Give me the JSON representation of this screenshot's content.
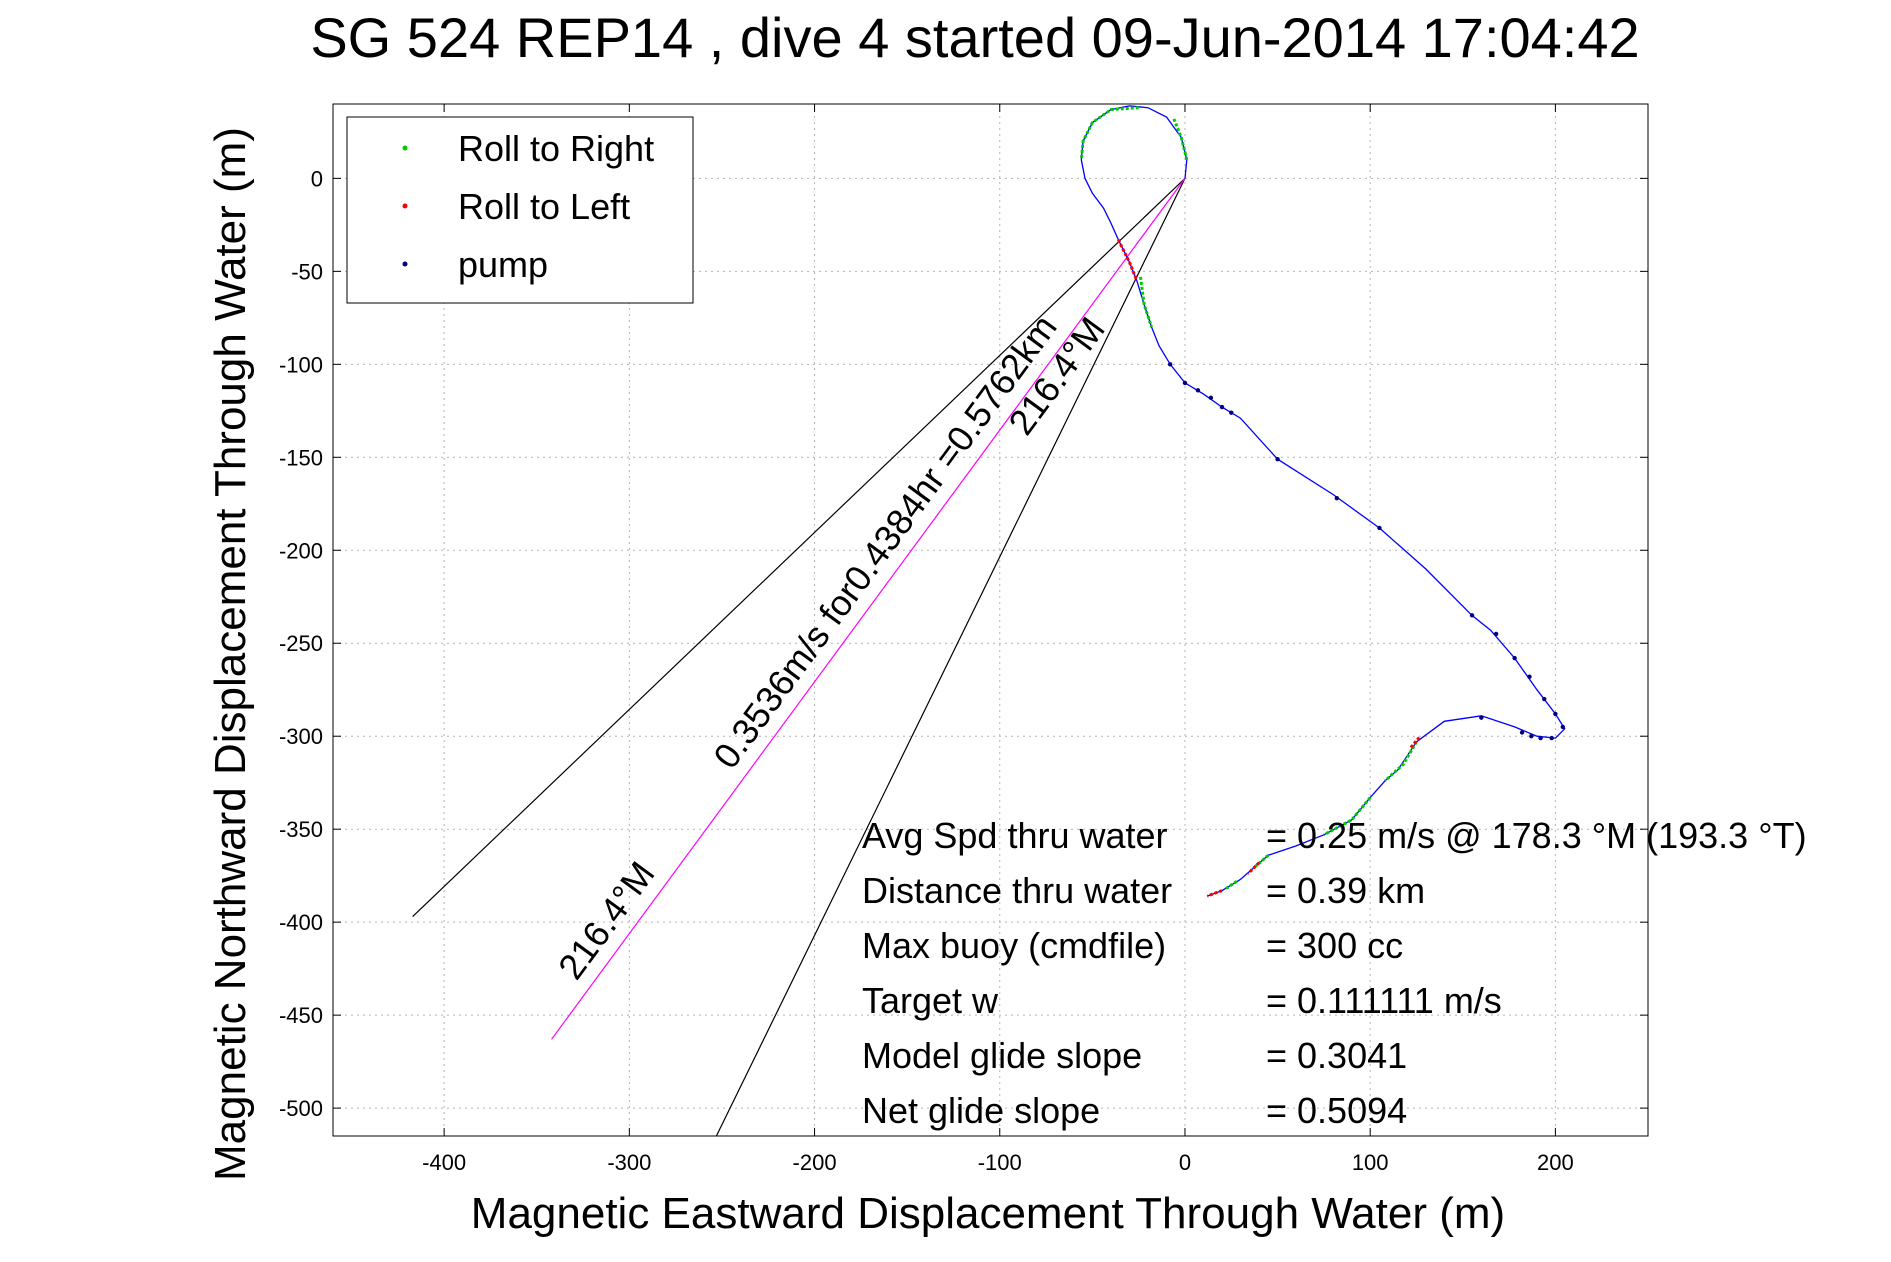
{
  "chart_data": {
    "type": "line",
    "title": "SG 524   REP14  , dive 4 started 09-Jun-2014 17:04:42",
    "xlabel": "Magnetic Eastward Displacement Through Water (m)",
    "ylabel": "Magnetic Northward Displacement Through Water (m)",
    "xlim": [
      -460,
      250
    ],
    "ylim": [
      -515,
      40
    ],
    "xticks": [
      -400,
      -300,
      -200,
      -100,
      0,
      100,
      200
    ],
    "yticks": [
      0,
      -50,
      -100,
      -150,
      -200,
      -250,
      -300,
      -350,
      -400,
      -450,
      -500
    ],
    "grid": true,
    "legend_position": "top-left",
    "colors": {
      "track": "#0000ff",
      "roll_right": "#00cc00",
      "roll_left": "#ff0000",
      "pump": "#000080",
      "heading_line": "#ff00ff",
      "cone": "#000000"
    },
    "legend": [
      {
        "label": "Roll to Right",
        "color": "#00cc00"
      },
      {
        "label": "Roll to Left",
        "color": "#ff0000"
      },
      {
        "label": "pump",
        "color": "#000080"
      }
    ],
    "track": [
      [
        0,
        0
      ],
      [
        1,
        10
      ],
      [
        -2,
        22
      ],
      [
        -10,
        33
      ],
      [
        -20,
        38
      ],
      [
        -30,
        39
      ],
      [
        -40,
        37
      ],
      [
        -50,
        30
      ],
      [
        -55,
        20
      ],
      [
        -56,
        10
      ],
      [
        -54,
        0
      ],
      [
        -50,
        -8
      ],
      [
        -44,
        -16
      ],
      [
        -40,
        -24
      ],
      [
        -36,
        -33
      ],
      [
        -30,
        -45
      ],
      [
        -26,
        -55
      ],
      [
        -22,
        -68
      ],
      [
        -18,
        -80
      ],
      [
        -14,
        -90
      ],
      [
        -8,
        -100
      ],
      [
        0,
        -110
      ],
      [
        10,
        -116
      ],
      [
        20,
        -123
      ],
      [
        30,
        -129
      ],
      [
        50,
        -151
      ],
      [
        80,
        -170
      ],
      [
        105,
        -188
      ],
      [
        130,
        -210
      ],
      [
        155,
        -235
      ],
      [
        165,
        -243
      ],
      [
        178,
        -258
      ],
      [
        190,
        -275
      ],
      [
        200,
        -288
      ],
      [
        205,
        -296
      ],
      [
        200,
        -301
      ],
      [
        190,
        -300
      ],
      [
        178,
        -295
      ],
      [
        160,
        -289
      ],
      [
        140,
        -292
      ],
      [
        125,
        -303
      ],
      [
        115,
        -318
      ],
      [
        108,
        -324
      ],
      [
        100,
        -333
      ],
      [
        90,
        -345
      ],
      [
        75,
        -353
      ],
      [
        60,
        -359
      ],
      [
        45,
        -364
      ],
      [
        38,
        -370
      ],
      [
        30,
        -377
      ],
      [
        20,
        -383
      ],
      [
        12,
        -386
      ]
    ],
    "roll_right_segments": [
      [
        [
          -25,
          38
        ],
        [
          -40,
          37
        ],
        [
          -50,
          30
        ],
        [
          -55,
          20
        ],
        [
          -56,
          10
        ]
      ],
      [
        [
          -6,
          32
        ],
        [
          -2,
          22
        ],
        [
          1,
          10
        ]
      ],
      [
        [
          -24,
          -53
        ],
        [
          -22,
          -68
        ],
        [
          -18,
          -80
        ]
      ],
      [
        [
          125,
          -303
        ],
        [
          118,
          -315
        ],
        [
          108,
          -324
        ]
      ],
      [
        [
          100,
          -333
        ],
        [
          90,
          -345
        ],
        [
          75,
          -353
        ]
      ],
      [
        [
          45,
          -364
        ],
        [
          38,
          -370
        ]
      ],
      [
        [
          28,
          -378
        ],
        [
          22,
          -382
        ]
      ]
    ],
    "roll_left_segments": [
      [
        [
          -36,
          -33
        ],
        [
          -30,
          -45
        ],
        [
          -26,
          -55
        ]
      ],
      [
        [
          122,
          -306
        ],
        [
          127,
          -300
        ]
      ],
      [
        [
          40,
          -368
        ],
        [
          34,
          -374
        ]
      ],
      [
        [
          20,
          -383
        ],
        [
          12,
          -386
        ]
      ]
    ],
    "pump_points": [
      [
        -8,
        -100
      ],
      [
        0,
        -110
      ],
      [
        7,
        -114
      ],
      [
        14,
        -118
      ],
      [
        20,
        -123
      ],
      [
        25,
        -126
      ],
      [
        50,
        -151
      ],
      [
        82,
        -172
      ],
      [
        105,
        -188
      ],
      [
        155,
        -235
      ],
      [
        168,
        -245
      ],
      [
        178,
        -258
      ],
      [
        186,
        -268
      ],
      [
        194,
        -280
      ],
      [
        200,
        -288
      ],
      [
        204,
        -295
      ],
      [
        198,
        -301
      ],
      [
        192,
        -301
      ],
      [
        187,
        -300
      ],
      [
        182,
        -298
      ],
      [
        160,
        -290
      ]
    ],
    "heading_line": {
      "start": [
        0,
        0
      ],
      "end": [
        -342,
        -463
      ],
      "label": "216.4°M"
    },
    "cone_left_end": [
      -417,
      -397
    ],
    "cone_right_end": [
      -253,
      -515
    ],
    "annotations": {
      "speed_line_label": "0.3536m/s for0.4384hr =0.5762km",
      "heading_label_top": "216.4°M",
      "heading_label_bottom": "216.4°M"
    },
    "stats": [
      {
        "label": "Avg Spd thru water",
        "value": "=  0.25 m/s @ 178.3 °M (193.3 °T)"
      },
      {
        "label": "Distance thru water",
        "value": "=  0.39 km"
      },
      {
        "label": "Max buoy (cmdfile)",
        "value": "= 300 cc"
      },
      {
        "label": "Target w",
        "value": "= 0.111111 m/s"
      },
      {
        "label": "Model glide slope",
        "value": "= 0.3041"
      },
      {
        "label": "Net glide slope",
        "value": "= 0.5094"
      }
    ]
  }
}
